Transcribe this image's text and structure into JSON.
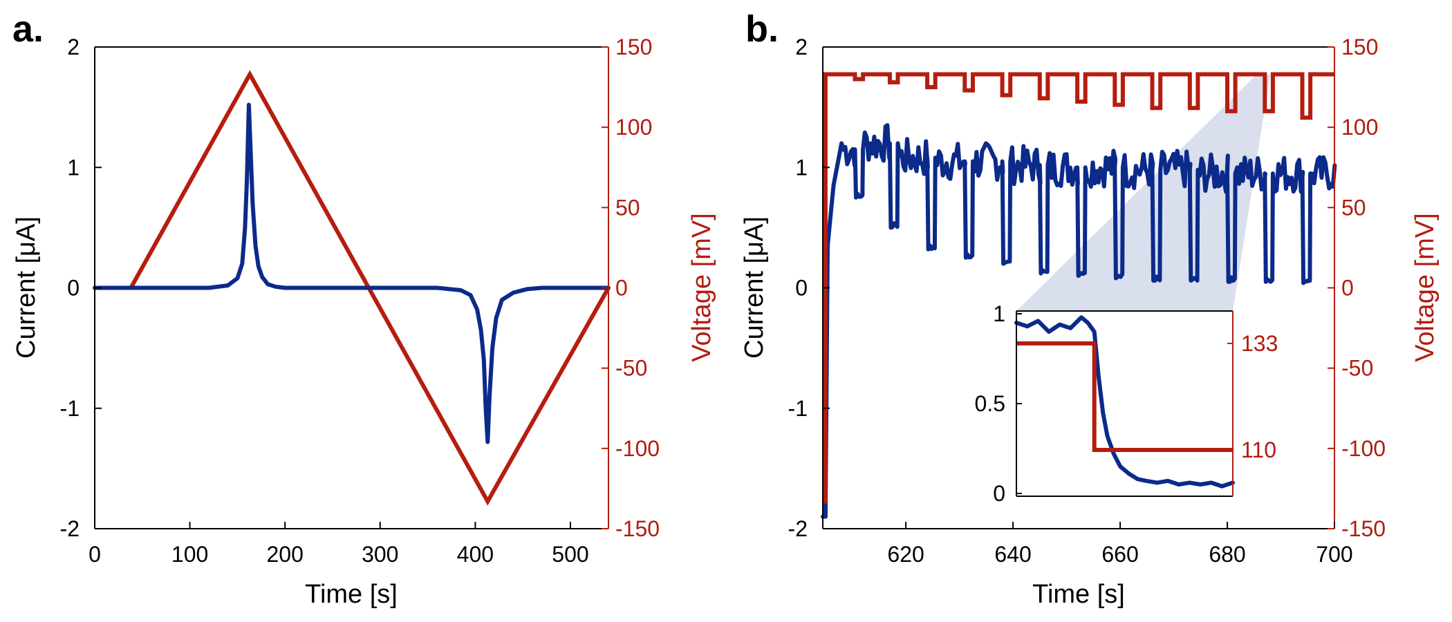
{
  "figure": {
    "panel_a_label": "a.",
    "panel_b_label": "b."
  },
  "colors": {
    "current": "#0b2a8a",
    "voltage": "#b51d0f",
    "voltage_axis": "#b01c10",
    "highlight": "#aab8d6"
  },
  "chart_data": [
    {
      "id": "panel-a",
      "type": "line",
      "title": "",
      "xlabel": "Time [s]",
      "ylabel_left": "Current [μA]",
      "ylabel_right": "Voltage [mV]",
      "xlim": [
        0,
        540
      ],
      "ylim_left": [
        -2,
        2
      ],
      "ylim_right": [
        -150,
        150
      ],
      "xticks": [
        0,
        100,
        200,
        300,
        400,
        500
      ],
      "yticks_left": [
        -2,
        -1,
        0,
        1,
        2
      ],
      "yticks_right": [
        -150,
        -100,
        -50,
        0,
        50,
        100,
        150
      ],
      "series": [
        {
          "name": "Voltage",
          "axis": "right",
          "x": [
            0,
            38,
            163,
            288,
            413,
            540
          ],
          "y": [
            0,
            0,
            133,
            0,
            -133,
            0
          ]
        },
        {
          "name": "Current",
          "axis": "left",
          "x": [
            0,
            120,
            140,
            150,
            155,
            158,
            160,
            162,
            164,
            166,
            169,
            172,
            176,
            182,
            190,
            200,
            280,
            360,
            385,
            395,
            402,
            406,
            409,
            411,
            413,
            415,
            418,
            422,
            428,
            440,
            455,
            470,
            540
          ],
          "y": [
            0,
            0,
            0.02,
            0.08,
            0.2,
            0.5,
            0.9,
            1.52,
            1.1,
            0.7,
            0.35,
            0.18,
            0.09,
            0.03,
            0.01,
            0,
            0,
            0,
            -0.02,
            -0.06,
            -0.18,
            -0.35,
            -0.6,
            -1.0,
            -1.28,
            -0.9,
            -0.5,
            -0.25,
            -0.1,
            -0.04,
            -0.01,
            0,
            0
          ]
        }
      ]
    },
    {
      "id": "panel-b",
      "type": "line",
      "title": "",
      "xlabel": "Time [s]",
      "ylabel_left": "Current [μA]",
      "ylabel_right": "Voltage [mV]",
      "xlim": [
        604.5,
        700
      ],
      "ylim_left": [
        -2,
        2
      ],
      "ylim_right": [
        -150,
        150
      ],
      "xticks": [
        620,
        640,
        660,
        680,
        700
      ],
      "yticks_left": [
        -2,
        -1,
        0,
        1,
        2
      ],
      "yticks_right": [
        -150,
        -100,
        -50,
        0,
        50,
        100,
        150
      ],
      "voltage_high": 133,
      "voltage_start": -133,
      "voltage_dips": [
        {
          "start": 610.5,
          "end": 612.0,
          "value": 130
        },
        {
          "start": 617.0,
          "end": 618.5,
          "value": 128
        },
        {
          "start": 624.0,
          "end": 625.5,
          "value": 125
        },
        {
          "start": 631.0,
          "end": 632.5,
          "value": 123
        },
        {
          "start": 638.0,
          "end": 639.5,
          "value": 120
        },
        {
          "start": 645.0,
          "end": 646.5,
          "value": 118
        },
        {
          "start": 652.0,
          "end": 653.5,
          "value": 116
        },
        {
          "start": 659.0,
          "end": 660.5,
          "value": 114
        },
        {
          "start": 666.0,
          "end": 667.5,
          "value": 112
        },
        {
          "start": 673.0,
          "end": 674.5,
          "value": 112
        },
        {
          "start": 680.0,
          "end": 681.5,
          "value": 110
        },
        {
          "start": 687.0,
          "end": 688.5,
          "value": 110
        },
        {
          "start": 694.0,
          "end": 695.5,
          "value": 106
        }
      ],
      "current_events": [
        {
          "start": 610.5,
          "end": 612.0,
          "low": 0.75,
          "level": 1.15
        },
        {
          "start": 617.0,
          "end": 618.5,
          "low": 0.5,
          "level": 1.2
        },
        {
          "start": 624.0,
          "end": 625.5,
          "low": 0.32,
          "level": 1.08
        },
        {
          "start": 631.0,
          "end": 632.5,
          "low": 0.25,
          "level": 1.05
        },
        {
          "start": 638.0,
          "end": 639.5,
          "low": 0.2,
          "level": 1.05
        },
        {
          "start": 645.0,
          "end": 646.5,
          "low": 0.12,
          "level": 1.02
        },
        {
          "start": 652.0,
          "end": 653.5,
          "low": 0.1,
          "level": 1.0
        },
        {
          "start": 659.0,
          "end": 660.5,
          "low": 0.08,
          "level": 1.0
        },
        {
          "start": 666.0,
          "end": 667.5,
          "low": 0.06,
          "level": 0.98
        },
        {
          "start": 673.0,
          "end": 674.5,
          "low": 0.06,
          "level": 0.98
        },
        {
          "start": 680.0,
          "end": 681.5,
          "low": 0.05,
          "level": 0.95
        },
        {
          "start": 687.0,
          "end": 688.5,
          "low": 0.05,
          "level": 0.95
        },
        {
          "start": 694.0,
          "end": 695.5,
          "low": 0.04,
          "level": 0.95
        }
      ],
      "inset": {
        "xlim": [
          0,
          1
        ],
        "ylim_left": [
          0,
          1
        ],
        "ylim_right": [
          100,
          140
        ],
        "yticks_left": [
          0,
          0.5,
          1
        ],
        "yticks_left_labels": [
          "0",
          "0.5",
          "1"
        ],
        "yticks_right": [
          110,
          133
        ],
        "voltage": {
          "x": [
            0,
            0.36,
            0.36,
            1
          ],
          "y": [
            133,
            133,
            110,
            110
          ]
        },
        "current": {
          "x": [
            0,
            0.05,
            0.1,
            0.15,
            0.2,
            0.25,
            0.3,
            0.33,
            0.36,
            0.38,
            0.4,
            0.42,
            0.45,
            0.48,
            0.52,
            0.56,
            0.6,
            0.65,
            0.7,
            0.75,
            0.8,
            0.85,
            0.9,
            0.95,
            1
          ],
          "y": [
            0.95,
            0.93,
            0.96,
            0.9,
            0.94,
            0.92,
            0.98,
            0.95,
            0.9,
            0.65,
            0.45,
            0.32,
            0.22,
            0.15,
            0.11,
            0.08,
            0.07,
            0.06,
            0.07,
            0.05,
            0.06,
            0.05,
            0.06,
            0.04,
            0.06
          ]
        }
      }
    }
  ]
}
